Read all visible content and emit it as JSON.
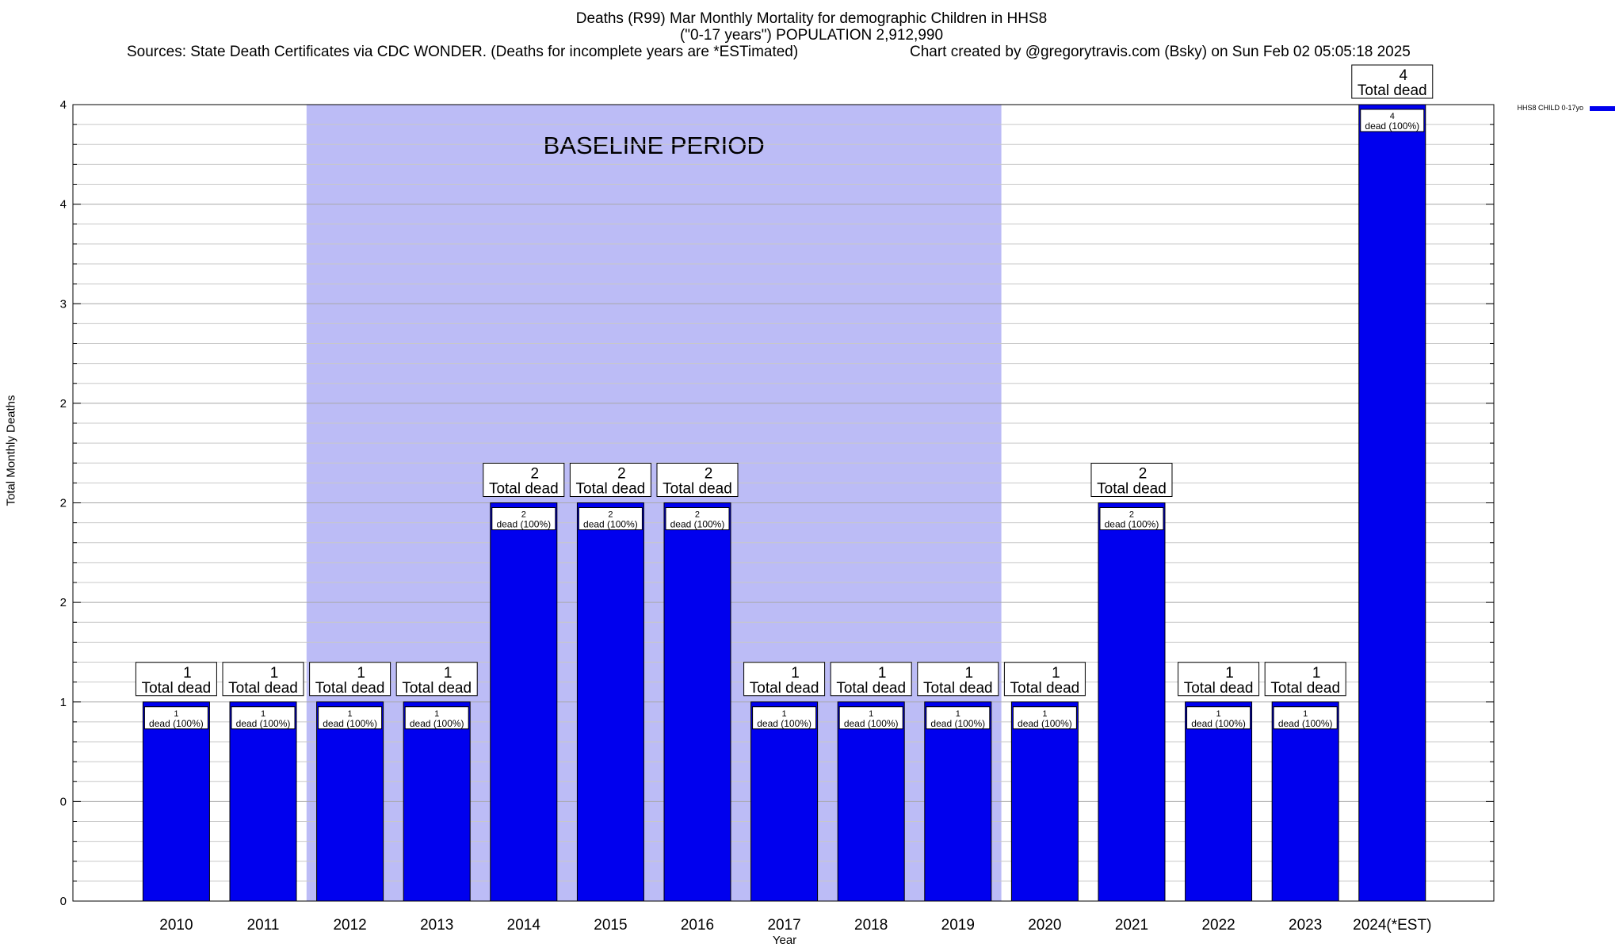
{
  "header": {
    "title_line1": "Deaths (R99) Mar Monthly Mortality for demographic Children in HHS8",
    "title_line2": "(\"0-17 years\") POPULATION 2,912,990",
    "sources": "Sources: State Death Certificates via CDC WONDER. (Deaths for incomplete years are *ESTimated)",
    "credit": "Chart created by @gregorytravis.com (Bsky) on Sun Feb 02 05:05:18 2025"
  },
  "chart_data": {
    "type": "bar",
    "xlabel": "Year",
    "ylabel": "Total Monthly Deaths",
    "ylim": [
      0,
      4
    ],
    "y_tick_labels": [
      "0",
      "0",
      "1",
      "2",
      "2",
      "2",
      "3",
      "4",
      "4"
    ],
    "grid": true,
    "legend_position": "top-right",
    "categories": [
      "2010",
      "2011",
      "2012",
      "2013",
      "2014",
      "2015",
      "2016",
      "2017",
      "2018",
      "2019",
      "2020",
      "2021",
      "2022",
      "2023",
      "2024(*EST)"
    ],
    "series": [
      {
        "name": "HHS8 CHILD 0-17yo",
        "color": "#0000ee",
        "values": [
          1,
          1,
          1,
          1,
          2,
          2,
          2,
          1,
          1,
          1,
          1,
          2,
          1,
          1,
          4
        ]
      }
    ],
    "total_label_suffix": "Total dead",
    "inner_label_suffix": "dead (100%)",
    "baseline": {
      "label": "BASELINE PERIOD",
      "from": "2012",
      "to": "2019",
      "color": "#bcbcf6"
    }
  }
}
